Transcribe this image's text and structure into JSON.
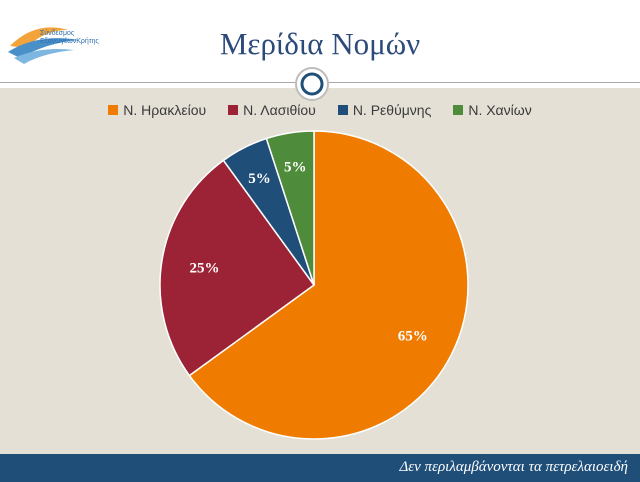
{
  "header": {
    "title": "Μερίδια Νομών",
    "logo_line1": "Σύνδεσμος",
    "logo_line2": "ΕξαγωγέωνΚρήτης"
  },
  "footer": {
    "note": "Δεν περιλαμβάνονται τα πετρελαιοειδή"
  },
  "colors": {
    "background": "#e4e0d6",
    "footer": "#1f4e79",
    "title": "#2c4a7a"
  },
  "chart_data": {
    "type": "pie",
    "title": "",
    "legend_position": "top",
    "slices": [
      {
        "label": "Ν. Ηρακλείου",
        "value": 65,
        "display": "65%",
        "color": "#ef7c00"
      },
      {
        "label": "Ν. Λασιθίου",
        "value": 25,
        "display": "25%",
        "color": "#9b2335"
      },
      {
        "label": "Ν. Ρεθύμνης",
        "value": 5,
        "display": "5%",
        "color": "#1f4e79"
      },
      {
        "label": "Ν. Χανίων",
        "value": 5,
        "display": "5%",
        "color": "#4e8b3a"
      }
    ]
  }
}
